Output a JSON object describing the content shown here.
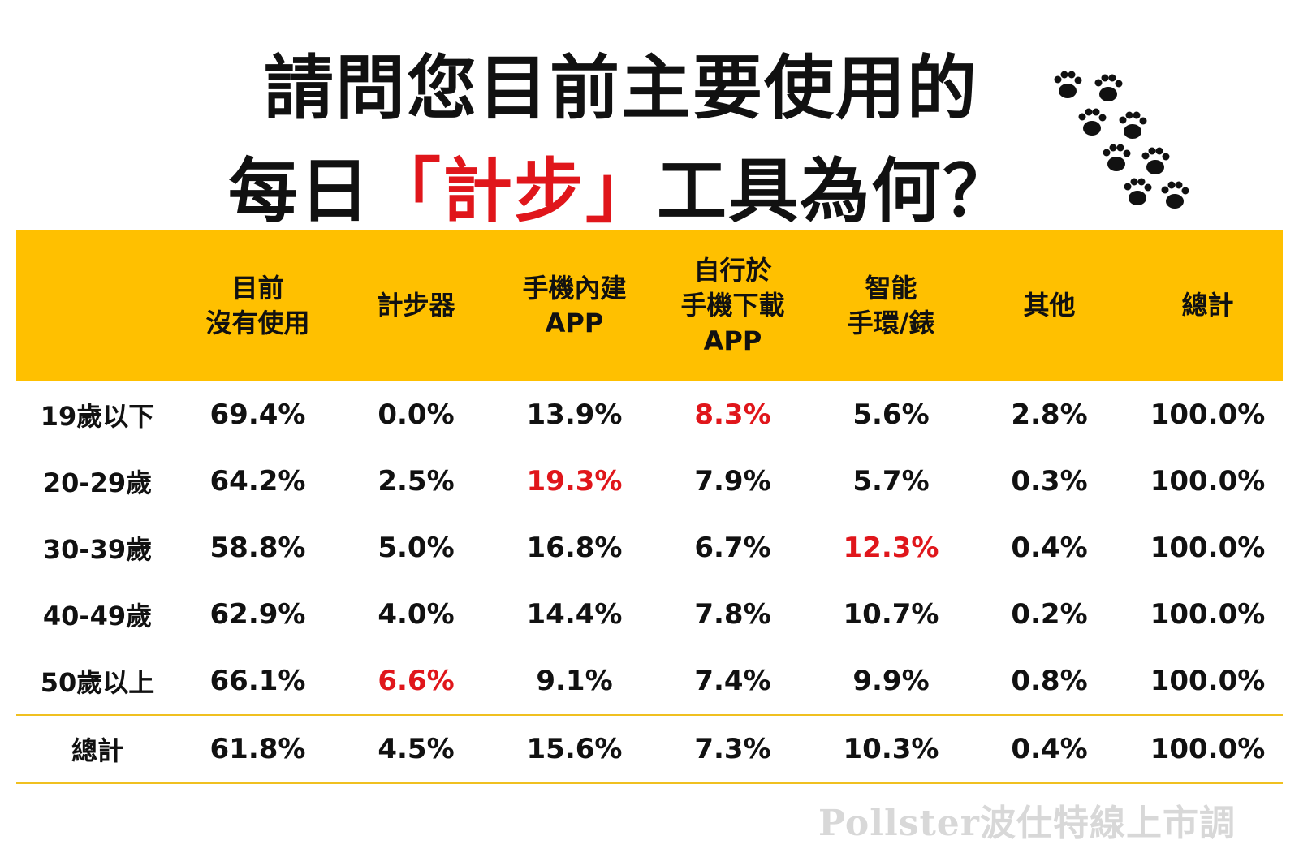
{
  "title": {
    "line1": "請問您目前主要使用的",
    "line2_pre": "每日",
    "line2_red": "「計步」",
    "line2_post": "工具為何？"
  },
  "colors": {
    "header_bg": "#ffc000",
    "highlight": "#e0161b",
    "rule": "#f0c020"
  },
  "decoration": "paw-prints-icon",
  "chart_data": {
    "type": "table",
    "columns": [
      "",
      "目前\n沒有使用",
      "計步器",
      "手機內建\nAPP",
      "自行於\n手機下載\nAPP",
      "智能\n手環/錶",
      "其他",
      "總計"
    ],
    "rows": [
      {
        "label": "19歲以下",
        "values": [
          "69.4%",
          "0.0%",
          "13.9%",
          "8.3%",
          "5.6%",
          "2.8%",
          "100.0%"
        ],
        "highlight": 3
      },
      {
        "label": "20-29歲",
        "values": [
          "64.2%",
          "2.5%",
          "19.3%",
          "7.9%",
          "5.7%",
          "0.3%",
          "100.0%"
        ],
        "highlight": 2
      },
      {
        "label": "30-39歲",
        "values": [
          "58.8%",
          "5.0%",
          "16.8%",
          "6.7%",
          "12.3%",
          "0.4%",
          "100.0%"
        ],
        "highlight": 4
      },
      {
        "label": "40-49歲",
        "values": [
          "62.9%",
          "4.0%",
          "14.4%",
          "7.8%",
          "10.7%",
          "0.2%",
          "100.0%"
        ],
        "highlight": -1
      },
      {
        "label": "50歲以上",
        "values": [
          "66.1%",
          "6.6%",
          "9.1%",
          "7.4%",
          "9.9%",
          "0.8%",
          "100.0%"
        ],
        "highlight": 1
      }
    ],
    "total": {
      "label": "總計",
      "values": [
        "61.8%",
        "4.5%",
        "15.6%",
        "7.3%",
        "10.3%",
        "0.4%",
        "100.0%"
      ]
    }
  },
  "watermark": "Pollster波仕特線上市調"
}
